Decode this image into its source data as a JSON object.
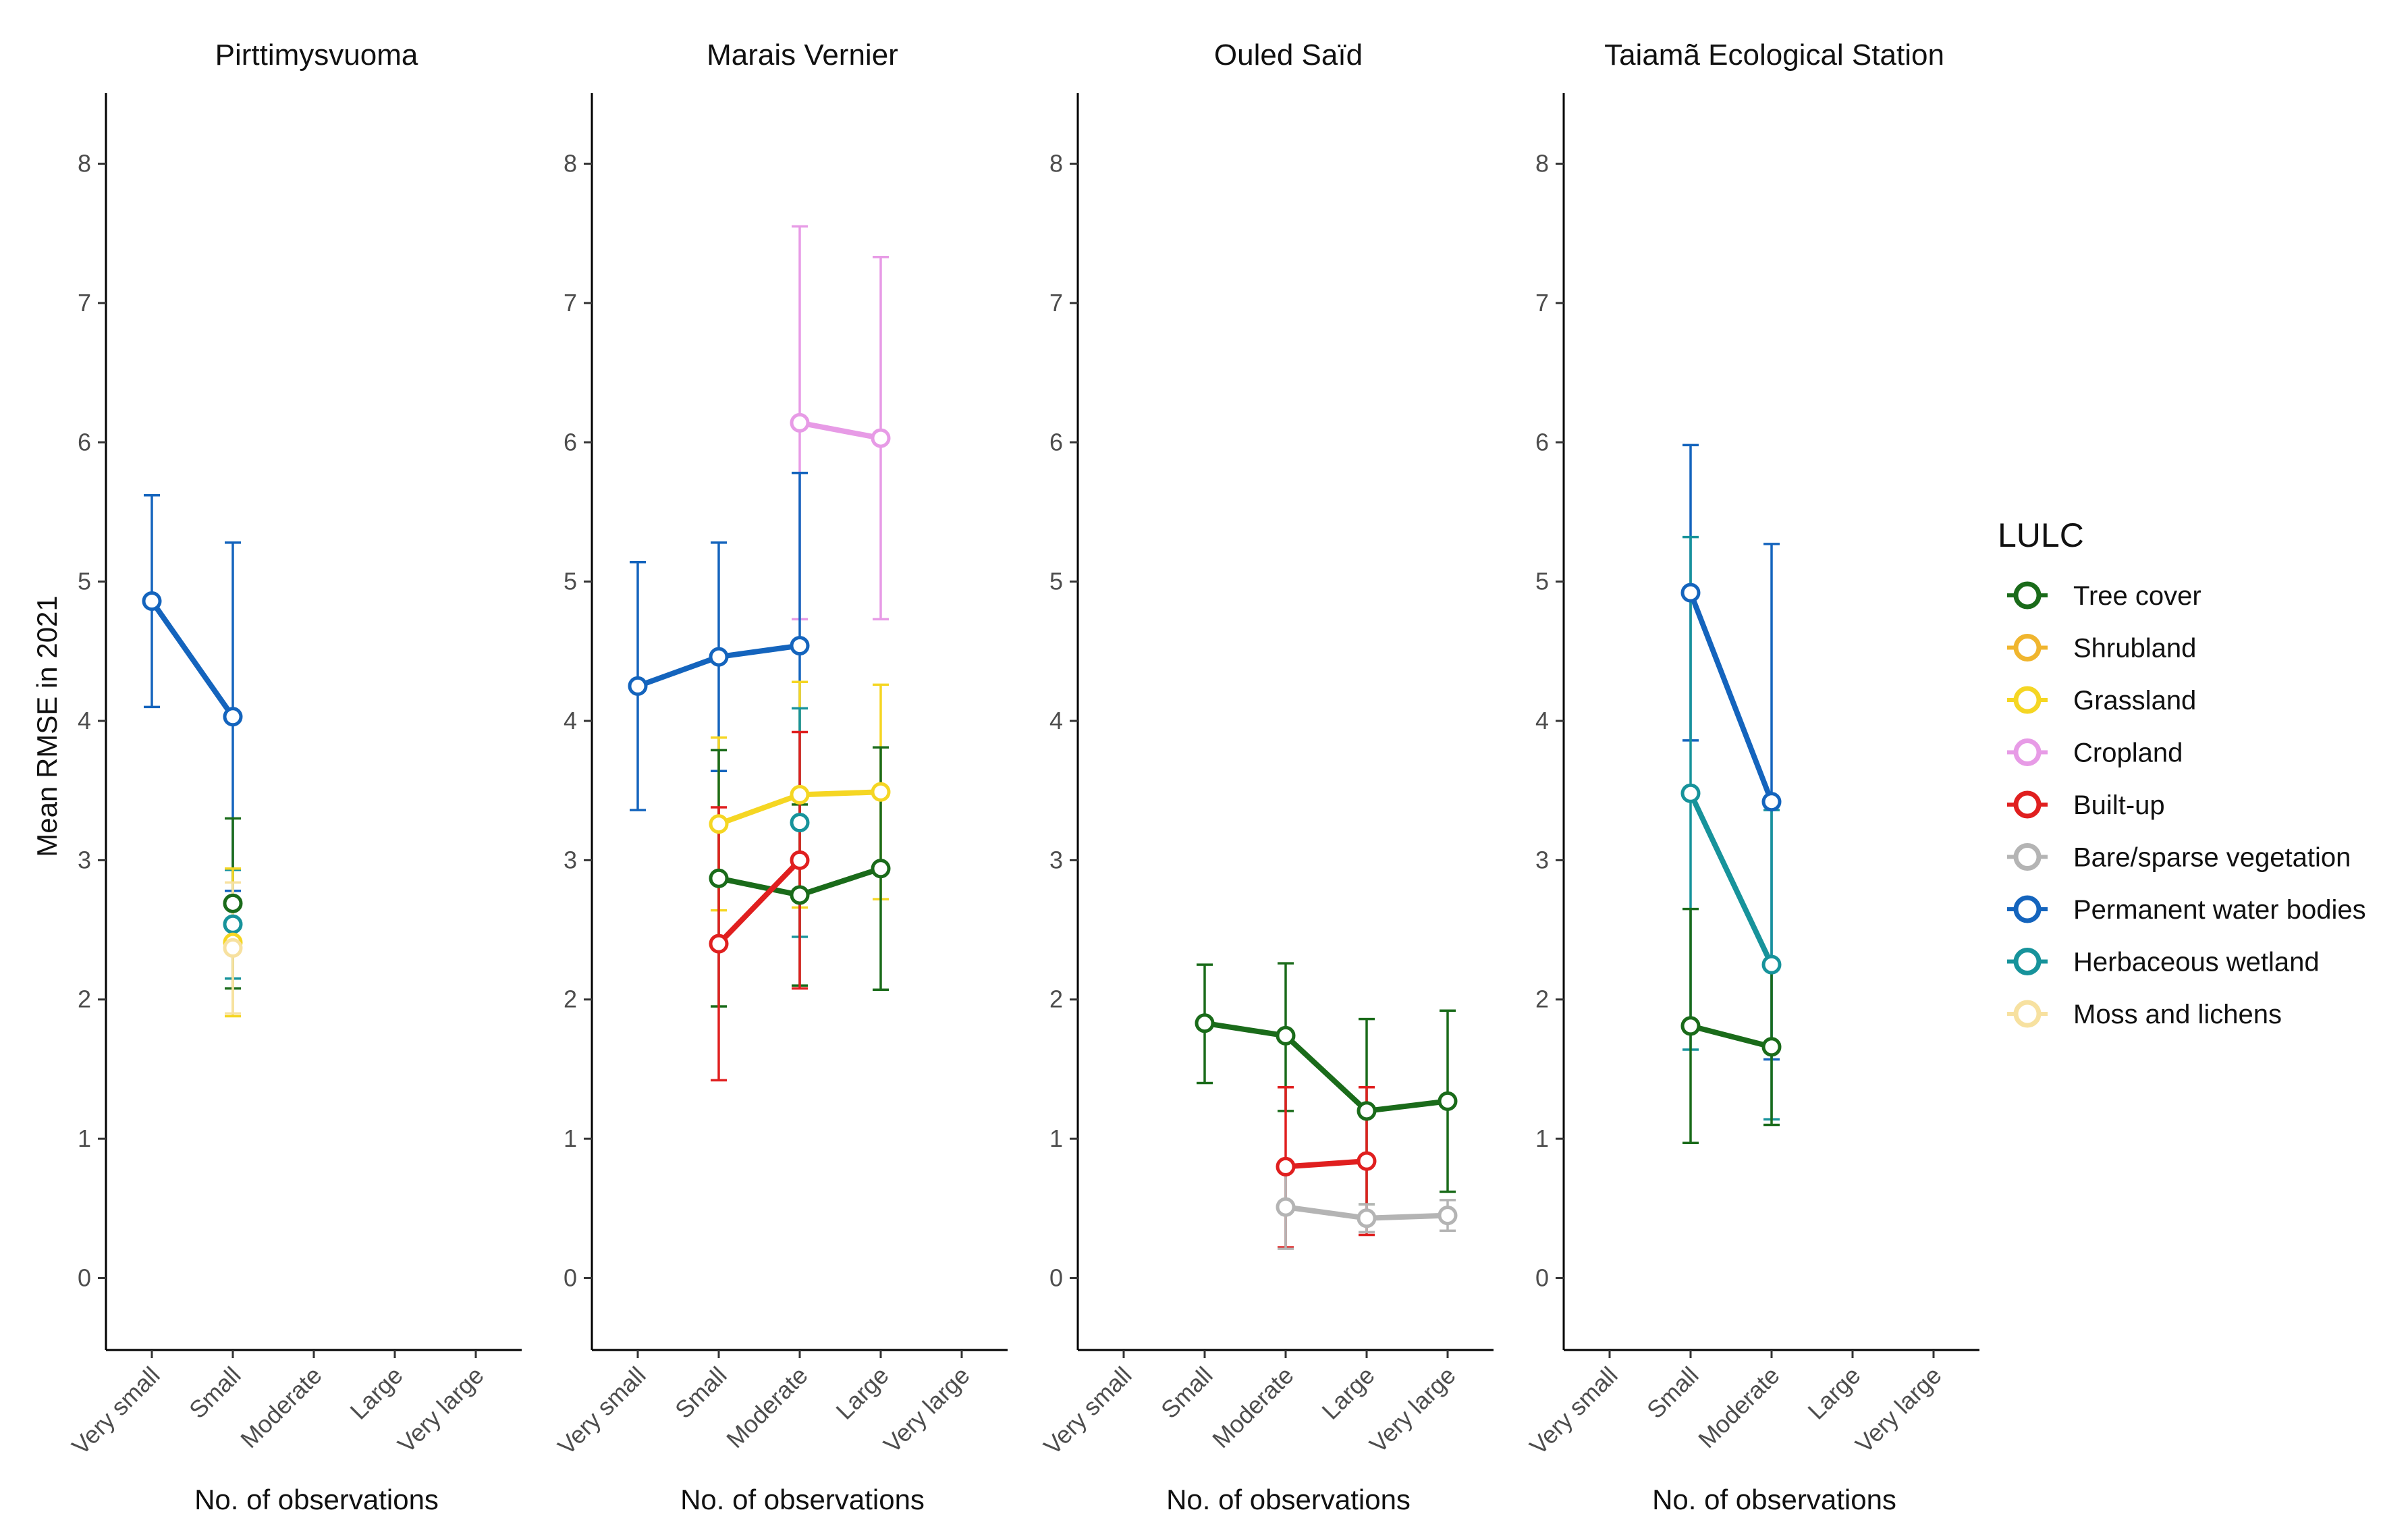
{
  "chart_data": {
    "type": "line",
    "ylabel": "Mean RMSE in 2021",
    "xlabel": "No. of observations",
    "ylim": [
      -0.4,
      8.4
    ],
    "yticks": [
      0,
      1,
      2,
      3,
      4,
      5,
      6,
      7,
      8
    ],
    "categories": [
      "Very small",
      "Small",
      "Moderate",
      "Large",
      "Very large"
    ],
    "legend": {
      "title": "LULC",
      "position": "right",
      "entries": [
        {
          "name": "Tree cover",
          "color": "#1a6b1a"
        },
        {
          "name": "Shrubland",
          "color": "#f0b52e"
        },
        {
          "name": "Grassland",
          "color": "#f5d623"
        },
        {
          "name": "Cropland",
          "color": "#e79be6"
        },
        {
          "name": "Built-up",
          "color": "#e01f1f"
        },
        {
          "name": "Bare/sparse vegetation",
          "color": "#b4b4b4"
        },
        {
          "name": "Permanent water bodies",
          "color": "#1464bd"
        },
        {
          "name": "Herbaceous wetland",
          "color": "#17939b"
        },
        {
          "name": "Moss and lichens",
          "color": "#f7e1a0"
        }
      ]
    },
    "panels": [
      {
        "title": "Pirttimysvuoma",
        "series": [
          {
            "name": "Permanent water bodies",
            "points": [
              {
                "cat": "Very small",
                "y": 4.86,
                "lo": 4.1,
                "hi": 5.62
              },
              {
                "cat": "Small",
                "y": 4.03,
                "lo": 2.78,
                "hi": 5.28
              }
            ]
          },
          {
            "name": "Tree cover",
            "points": [
              {
                "cat": "Small",
                "y": 2.69,
                "lo": 2.08,
                "hi": 3.3
              }
            ]
          },
          {
            "name": "Herbaceous wetland",
            "points": [
              {
                "cat": "Small",
                "y": 2.54,
                "lo": 2.15,
                "hi": 2.93
              }
            ]
          },
          {
            "name": "Grassland",
            "points": [
              {
                "cat": "Small",
                "y": 2.41,
                "lo": 1.88,
                "hi": 2.94
              }
            ]
          },
          {
            "name": "Moss and lichens",
            "points": [
              {
                "cat": "Small",
                "y": 2.37,
                "lo": 1.9,
                "hi": 2.84
              }
            ]
          }
        ]
      },
      {
        "title": "Marais Vernier",
        "series": [
          {
            "name": "Cropland",
            "points": [
              {
                "cat": "Moderate",
                "y": 6.14,
                "lo": 4.73,
                "hi": 7.55
              },
              {
                "cat": "Large",
                "y": 6.03,
                "lo": 4.73,
                "hi": 7.33
              }
            ]
          },
          {
            "name": "Permanent water bodies",
            "points": [
              {
                "cat": "Very small",
                "y": 4.25,
                "lo": 3.36,
                "hi": 5.14
              },
              {
                "cat": "Small",
                "y": 4.46,
                "lo": 3.64,
                "hi": 5.28
              },
              {
                "cat": "Moderate",
                "y": 4.54,
                "lo": 3.3,
                "hi": 5.78
              }
            ]
          },
          {
            "name": "Grassland",
            "points": [
              {
                "cat": "Small",
                "y": 3.26,
                "lo": 2.64,
                "hi": 3.88
              },
              {
                "cat": "Moderate",
                "y": 3.47,
                "lo": 2.66,
                "hi": 4.28
              },
              {
                "cat": "Large",
                "y": 3.49,
                "lo": 2.72,
                "hi": 4.26
              }
            ]
          },
          {
            "name": "Herbaceous wetland",
            "points": [
              {
                "cat": "Moderate",
                "y": 3.27,
                "lo": 2.45,
                "hi": 4.09
              }
            ]
          },
          {
            "name": "Tree cover",
            "points": [
              {
                "cat": "Small",
                "y": 2.87,
                "lo": 1.95,
                "hi": 3.79
              },
              {
                "cat": "Moderate",
                "y": 2.75,
                "lo": 2.1,
                "hi": 3.4
              },
              {
                "cat": "Large",
                "y": 2.94,
                "lo": 2.07,
                "hi": 3.81
              }
            ]
          },
          {
            "name": "Built-up",
            "points": [
              {
                "cat": "Small",
                "y": 2.4,
                "lo": 1.42,
                "hi": 3.38
              },
              {
                "cat": "Moderate",
                "y": 3.0,
                "lo": 2.08,
                "hi": 3.92
              }
            ]
          }
        ]
      },
      {
        "title": "Ouled Saïd",
        "series": [
          {
            "name": "Tree cover",
            "points": [
              {
                "cat": "Small",
                "y": 1.83,
                "lo": 1.4,
                "hi": 2.25
              },
              {
                "cat": "Moderate",
                "y": 1.74,
                "lo": 1.2,
                "hi": 2.26
              },
              {
                "cat": "Large",
                "y": 1.2,
                "lo": 0.53,
                "hi": 1.86
              },
              {
                "cat": "Very large",
                "y": 1.27,
                "lo": 0.62,
                "hi": 1.92
              }
            ]
          },
          {
            "name": "Built-up",
            "points": [
              {
                "cat": "Moderate",
                "y": 0.8,
                "lo": 0.22,
                "hi": 1.37
              },
              {
                "cat": "Large",
                "y": 0.84,
                "lo": 0.31,
                "hi": 1.37
              }
            ]
          },
          {
            "name": "Bare/sparse vegetation",
            "points": [
              {
                "cat": "Moderate",
                "y": 0.51,
                "lo": 0.21,
                "hi": 0.81
              },
              {
                "cat": "Large",
                "y": 0.43,
                "lo": 0.33,
                "hi": 0.53
              },
              {
                "cat": "Very large",
                "y": 0.45,
                "lo": 0.34,
                "hi": 0.56
              }
            ]
          }
        ]
      },
      {
        "title": "Taiamã Ecological Station",
        "series": [
          {
            "name": "Permanent water bodies",
            "points": [
              {
                "cat": "Small",
                "y": 4.92,
                "lo": 3.86,
                "hi": 5.98
              },
              {
                "cat": "Moderate",
                "y": 3.42,
                "lo": 1.57,
                "hi": 5.27
              }
            ]
          },
          {
            "name": "Herbaceous wetland",
            "points": [
              {
                "cat": "Small",
                "y": 3.48,
                "lo": 1.64,
                "hi": 5.32
              },
              {
                "cat": "Moderate",
                "y": 2.25,
                "lo": 1.14,
                "hi": 3.36
              }
            ]
          },
          {
            "name": "Tree cover",
            "points": [
              {
                "cat": "Small",
                "y": 1.81,
                "lo": 0.97,
                "hi": 2.65
              },
              {
                "cat": "Moderate",
                "y": 1.66,
                "lo": 1.1,
                "hi": 2.22
              }
            ]
          }
        ]
      }
    ]
  }
}
